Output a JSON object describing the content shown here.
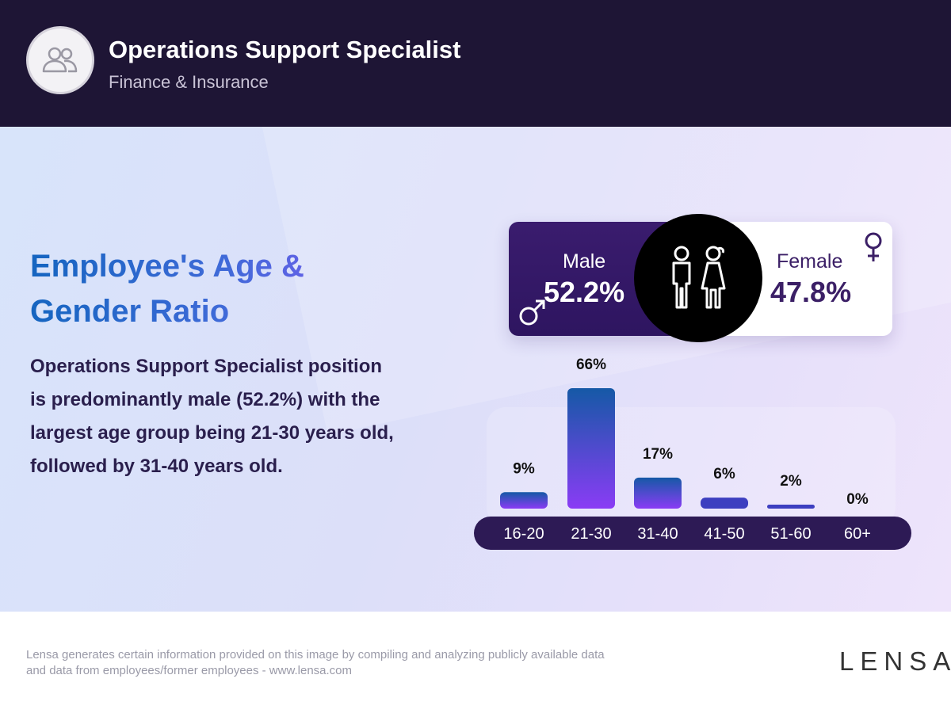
{
  "header": {
    "title": "Operations Support Specialist",
    "subtitle": "Finance & Insurance",
    "avatar_icon": "people-icon"
  },
  "main": {
    "heading": "Employee's Age & Gender Ratio",
    "description": "Operations Support Specialist position is predominantly male (52.2%) with the largest age group being 21-30 years old, followed by 31-40 years old."
  },
  "gender": {
    "male_label": "Male",
    "male_value": "52.2%",
    "female_label": "Female",
    "female_value": "47.8%",
    "male_color": "#341866",
    "female_color": "#ffffff"
  },
  "chart_data": {
    "type": "bar",
    "categories": [
      "16-20",
      "21-30",
      "31-40",
      "41-50",
      "51-60",
      "60+"
    ],
    "values": [
      9,
      66,
      17,
      6,
      2,
      0
    ],
    "value_labels": [
      "9%",
      "66%",
      "17%",
      "6%",
      "2%",
      "0%"
    ],
    "ylim": [
      0,
      66
    ],
    "grid": false,
    "colors": {
      "bar_top": "#1559a6",
      "bar_bottom": "#8a3cf5",
      "axis_bg": "#2d1a55",
      "label": "#111111",
      "tick": "#ffffff"
    }
  },
  "footer": {
    "disclaimer_line1": "Lensa generates certain information provided on this image by compiling and analyzing publicly available data",
    "disclaimer_line2": "and data from employees/former employees - www.lensa.com",
    "logo": "LENSA"
  }
}
